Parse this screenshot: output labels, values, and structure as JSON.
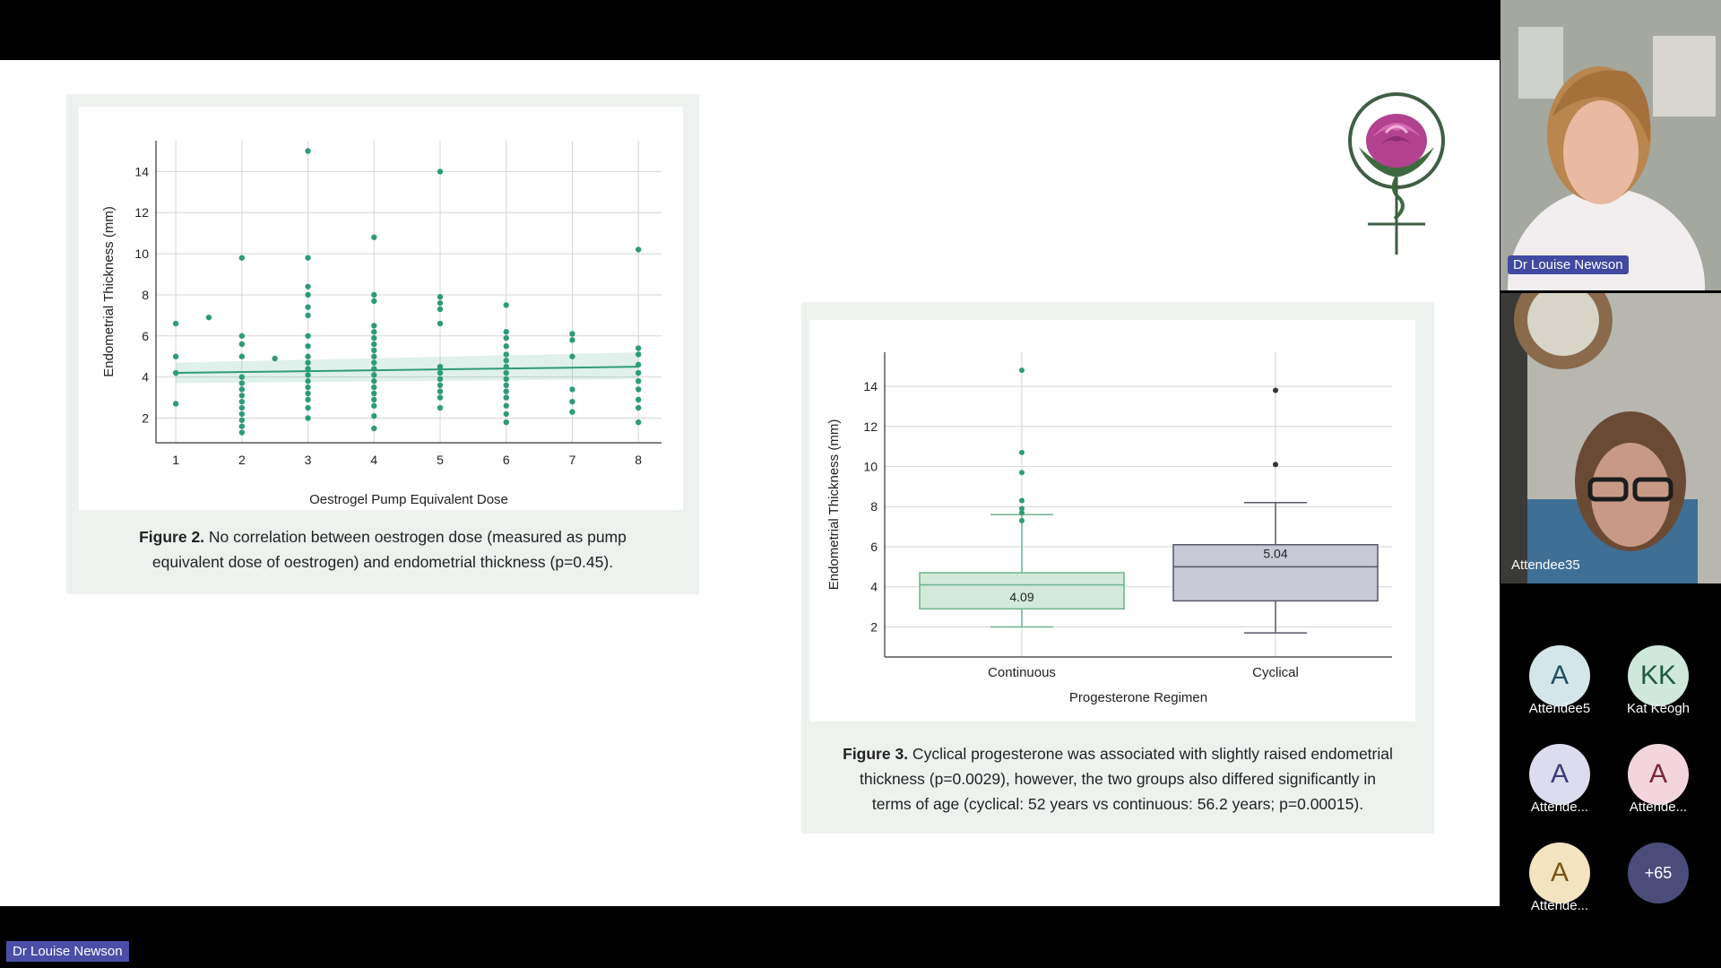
{
  "meeting": {
    "presenter_tag": "Dr Louise Newson",
    "video_tiles": [
      {
        "name": "Dr Louise Newson"
      },
      {
        "name": "Attendee35"
      }
    ],
    "participants": [
      {
        "initials": "A",
        "name": "Attendee5",
        "bg": "#d4e6ea",
        "fg": "#1f4e63"
      },
      {
        "initials": "KK",
        "name": "Kat Keogh",
        "bg": "#cfe8dc",
        "fg": "#1e5a3e"
      },
      {
        "initials": "A",
        "name": "Attende...",
        "bg": "#dcdcef",
        "fg": "#3a3a75"
      },
      {
        "initials": "A",
        "name": "Attende...",
        "bg": "#f3d6dd",
        "fg": "#7a2540"
      },
      {
        "initials": "A",
        "name": "Attende...",
        "bg": "#f3e3bf",
        "fg": "#7a5410"
      },
      {
        "initials": "+65",
        "name": "",
        "bg": "#4a4d7a",
        "fg": "#ffffff"
      }
    ]
  },
  "slide": {
    "logo_icon": "rose-female-symbol-icon",
    "figure2": {
      "caption_bold": "Figure 2.",
      "caption_line1": " No correlation between oestrogen dose (measured as pump",
      "caption_line2": "equivalent dose of oestrogen) and endometrial thickness (p=0.45)."
    },
    "figure3": {
      "caption_bold": "Figure 3.",
      "caption_line1": " Cyclical progesterone was associated with slightly raised endometrial",
      "caption_line2": "thickness (p=0.0029), however, the two groups also differed significantly in",
      "caption_line3": "terms of age (cyclical: 52 years vs continuous: 56.2 years; p=0.00015)."
    }
  },
  "chart_data": [
    {
      "type": "scatter",
      "xlabel": "Oestrogel Pump Equivalent Dose",
      "ylabel": "Endometrial Thickness (mm)",
      "xlim": [
        0.7,
        8.35
      ],
      "ylim": [
        0.8,
        15.5
      ],
      "xticks": [
        1,
        2,
        3,
        4,
        5,
        6,
        7,
        8
      ],
      "yticks": [
        2,
        4,
        6,
        8,
        10,
        12,
        14
      ],
      "grid": true,
      "color": "#2e9b78",
      "trend": {
        "x": [
          1,
          8
        ],
        "y": [
          4.2,
          4.5
        ],
        "ci_low": [
          3.7,
          3.9
        ],
        "ci_high": [
          4.7,
          5.2
        ]
      },
      "points": [
        [
          1,
          6.6
        ],
        [
          1,
          5.0
        ],
        [
          1,
          4.2
        ],
        [
          1,
          2.7
        ],
        [
          1.5,
          6.9
        ],
        [
          2,
          9.8
        ],
        [
          2,
          6.0
        ],
        [
          2,
          5.6
        ],
        [
          2,
          5.0
        ],
        [
          2,
          4.0
        ],
        [
          2,
          3.7
        ],
        [
          2,
          3.4
        ],
        [
          2,
          3.1
        ],
        [
          2,
          2.8
        ],
        [
          2,
          2.5
        ],
        [
          2,
          2.2
        ],
        [
          2,
          1.9
        ],
        [
          2,
          1.6
        ],
        [
          2,
          1.3
        ],
        [
          2.5,
          4.9
        ],
        [
          3,
          15.0
        ],
        [
          3,
          9.8
        ],
        [
          3,
          8.4
        ],
        [
          3,
          8.0
        ],
        [
          3,
          7.4
        ],
        [
          3,
          7.0
        ],
        [
          3,
          6.0
        ],
        [
          3,
          5.5
        ],
        [
          3,
          5.0
        ],
        [
          3,
          4.7
        ],
        [
          3,
          4.4
        ],
        [
          3,
          4.1
        ],
        [
          3,
          3.8
        ],
        [
          3,
          3.5
        ],
        [
          3,
          3.2
        ],
        [
          3,
          2.9
        ],
        [
          3,
          2.5
        ],
        [
          3,
          2.0
        ],
        [
          4,
          10.8
        ],
        [
          4,
          8.0
        ],
        [
          4,
          7.7
        ],
        [
          4,
          6.5
        ],
        [
          4,
          6.2
        ],
        [
          4,
          5.9
        ],
        [
          4,
          5.6
        ],
        [
          4,
          5.3
        ],
        [
          4,
          5.0
        ],
        [
          4,
          4.7
        ],
        [
          4,
          4.4
        ],
        [
          4,
          4.1
        ],
        [
          4,
          3.8
        ],
        [
          4,
          3.5
        ],
        [
          4,
          3.2
        ],
        [
          4,
          2.9
        ],
        [
          4,
          2.6
        ],
        [
          4,
          2.1
        ],
        [
          4,
          1.5
        ],
        [
          5,
          14.0
        ],
        [
          5,
          7.9
        ],
        [
          5,
          7.6
        ],
        [
          5,
          7.3
        ],
        [
          5,
          6.6
        ],
        [
          5,
          4.5
        ],
        [
          5,
          4.2
        ],
        [
          5,
          3.9
        ],
        [
          5,
          3.6
        ],
        [
          5,
          3.3
        ],
        [
          5,
          3.0
        ],
        [
          5,
          2.5
        ],
        [
          6,
          7.5
        ],
        [
          6,
          6.2
        ],
        [
          6,
          5.9
        ],
        [
          6,
          5.5
        ],
        [
          6,
          5.1
        ],
        [
          6,
          4.8
        ],
        [
          6,
          4.5
        ],
        [
          6,
          4.2
        ],
        [
          6,
          3.9
        ],
        [
          6,
          3.6
        ],
        [
          6,
          3.3
        ],
        [
          6,
          3.0
        ],
        [
          6,
          2.6
        ],
        [
          6,
          2.2
        ],
        [
          6,
          1.8
        ],
        [
          7,
          6.1
        ],
        [
          7,
          5.8
        ],
        [
          7,
          5.0
        ],
        [
          7,
          3.4
        ],
        [
          7,
          2.8
        ],
        [
          7,
          2.3
        ],
        [
          8,
          10.2
        ],
        [
          8,
          5.4
        ],
        [
          8,
          5.1
        ],
        [
          8,
          4.6
        ],
        [
          8,
          4.2
        ],
        [
          8,
          3.8
        ],
        [
          8,
          3.4
        ],
        [
          8,
          2.9
        ],
        [
          8,
          2.5
        ],
        [
          8,
          1.8
        ]
      ]
    },
    {
      "type": "box",
      "xlabel": "Progesterone Regimen",
      "ylabel": "Endometrial Thickness (mm)",
      "ylim": [
        0.5,
        15.7
      ],
      "yticks": [
        2,
        4,
        6,
        8,
        10,
        12,
        14
      ],
      "grid": true,
      "categories": [
        "Continuous",
        "Cyclical"
      ],
      "boxes": [
        {
          "name": "Continuous",
          "q1": 2.9,
          "median": 4.1,
          "q3": 4.7,
          "whisker_low": 2.0,
          "whisker_high": 7.6,
          "label": "4.09",
          "fill": "#d3ead8",
          "stroke": "#6cb38d",
          "outlier_color": "#2e9b78",
          "outliers": [
            14.8,
            10.7,
            9.7,
            8.3,
            7.9,
            7.7,
            7.3
          ]
        },
        {
          "name": "Cyclical",
          "q1": 3.3,
          "median": 5.0,
          "q3": 6.1,
          "whisker_low": 1.7,
          "whisker_high": 8.2,
          "label": "5.04",
          "fill": "#c8c9d6",
          "stroke": "#555768",
          "outlier_color": "#333333",
          "outliers": [
            13.8,
            10.1
          ]
        }
      ]
    }
  ]
}
